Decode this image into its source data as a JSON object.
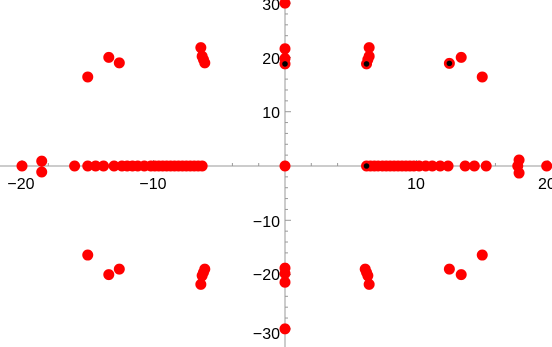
{
  "chart_data": {
    "type": "scatter",
    "title": "",
    "xlabel": "",
    "ylabel": "",
    "xlim": [
      -20,
      20
    ],
    "ylim": [
      -30,
      30
    ],
    "grid": false,
    "legend": "none",
    "x_ticks_major": [
      -20,
      -10,
      10,
      20
    ],
    "y_ticks_major": [
      -30,
      -20,
      -10,
      10,
      20,
      30
    ],
    "x_tick_labels": [
      "−20",
      "−10",
      "10",
      "20"
    ],
    "y_tick_labels": [
      "−30",
      "−20",
      "−10",
      "10",
      "20",
      "30"
    ],
    "colors": {
      "points": "#ff0000",
      "markers": "#000000",
      "axes": "#999999"
    },
    "series": [
      {
        "values": [
          {
            "x": -20,
            "y": 0
          },
          {
            "x": -18.5,
            "y": 0.9
          },
          {
            "x": -18.5,
            "y": -1.1
          },
          {
            "x": -16,
            "y": 0
          },
          {
            "x": -15,
            "y": 0
          },
          {
            "x": -14.4,
            "y": 0
          },
          {
            "x": -13.8,
            "y": 0
          },
          {
            "x": -13,
            "y": 0
          },
          {
            "x": -12.4,
            "y": 0
          },
          {
            "x": -12,
            "y": 0
          },
          {
            "x": -11.6,
            "y": 0
          },
          {
            "x": -11.2,
            "y": 0
          },
          {
            "x": -10.7,
            "y": 0
          },
          {
            "x": -10.2,
            "y": 0
          },
          {
            "x": -9.9,
            "y": 0
          },
          {
            "x": -9.6,
            "y": 0
          },
          {
            "x": -9.3,
            "y": 0
          },
          {
            "x": -9,
            "y": 0
          },
          {
            "x": -8.7,
            "y": 0
          },
          {
            "x": -8.4,
            "y": 0
          },
          {
            "x": -8.1,
            "y": 0
          },
          {
            "x": -7.8,
            "y": 0
          },
          {
            "x": -7.5,
            "y": 0
          },
          {
            "x": -7.2,
            "y": 0
          },
          {
            "x": -6.9,
            "y": 0
          },
          {
            "x": -6.6,
            "y": 0
          },
          {
            "x": -6.3,
            "y": 0
          },
          {
            "x": 0,
            "y": 0
          },
          {
            "x": 6.2,
            "y": 0
          },
          {
            "x": 6.5,
            "y": 0
          },
          {
            "x": 6.8,
            "y": 0
          },
          {
            "x": 7.1,
            "y": 0
          },
          {
            "x": 7.4,
            "y": 0
          },
          {
            "x": 7.7,
            "y": 0
          },
          {
            "x": 8,
            "y": 0
          },
          {
            "x": 8.3,
            "y": 0
          },
          {
            "x": 8.6,
            "y": 0
          },
          {
            "x": 8.9,
            "y": 0
          },
          {
            "x": 9.2,
            "y": 0
          },
          {
            "x": 9.5,
            "y": 0
          },
          {
            "x": 9.8,
            "y": 0
          },
          {
            "x": 10.2,
            "y": 0
          },
          {
            "x": 10.7,
            "y": 0
          },
          {
            "x": 11.2,
            "y": 0
          },
          {
            "x": 11.8,
            "y": 0
          },
          {
            "x": 12.4,
            "y": 0
          },
          {
            "x": 13.7,
            "y": 0
          },
          {
            "x": 14.4,
            "y": 0
          },
          {
            "x": 15.3,
            "y": 0
          },
          {
            "x": 17.7,
            "y": 0
          },
          {
            "x": 17.8,
            "y": 1.1
          },
          {
            "x": 17.8,
            "y": -1.3
          },
          {
            "x": 19.9,
            "y": 0
          },
          {
            "x": -15,
            "y": 16.4
          },
          {
            "x": -13.4,
            "y": 20
          },
          {
            "x": -12.6,
            "y": 19
          },
          {
            "x": -6.4,
            "y": 21.8
          },
          {
            "x": -6.3,
            "y": 20.2
          },
          {
            "x": -6.2,
            "y": 19.6
          },
          {
            "x": -6.1,
            "y": 19
          },
          {
            "x": 0,
            "y": 30
          },
          {
            "x": 0,
            "y": 21.6
          },
          {
            "x": 0,
            "y": 19.8
          },
          {
            "x": 0,
            "y": 18.8
          },
          {
            "x": 6.2,
            "y": 18.8
          },
          {
            "x": 6.3,
            "y": 19.6
          },
          {
            "x": 6.4,
            "y": 20.2
          },
          {
            "x": 6.4,
            "y": 21.8
          },
          {
            "x": 12.5,
            "y": 18.9
          },
          {
            "x": 13.4,
            "y": 20
          },
          {
            "x": 15,
            "y": 16.4
          },
          {
            "x": -15,
            "y": -16.4
          },
          {
            "x": -13.4,
            "y": -20
          },
          {
            "x": -12.6,
            "y": -19
          },
          {
            "x": -6.4,
            "y": -21.8
          },
          {
            "x": -6.3,
            "y": -20.2
          },
          {
            "x": -6.2,
            "y": -19.6
          },
          {
            "x": -6.1,
            "y": -19
          },
          {
            "x": 0,
            "y": -18.8
          },
          {
            "x": 0,
            "y": -19.8
          },
          {
            "x": 0,
            "y": -21.4
          },
          {
            "x": 0,
            "y": -30
          },
          {
            "x": 6.1,
            "y": -19
          },
          {
            "x": 6.2,
            "y": -19.6
          },
          {
            "x": 6.3,
            "y": -20.2
          },
          {
            "x": 6.4,
            "y": -21.8
          },
          {
            "x": 12.5,
            "y": -19
          },
          {
            "x": 13.4,
            "y": -20
          },
          {
            "x": 15,
            "y": -16.4
          }
        ]
      },
      {
        "values": [
          {
            "x": 0,
            "y": 18.8
          },
          {
            "x": 6.2,
            "y": 18.8
          },
          {
            "x": 12.5,
            "y": 18.9
          },
          {
            "x": 6.2,
            "y": 0
          }
        ]
      }
    ]
  }
}
